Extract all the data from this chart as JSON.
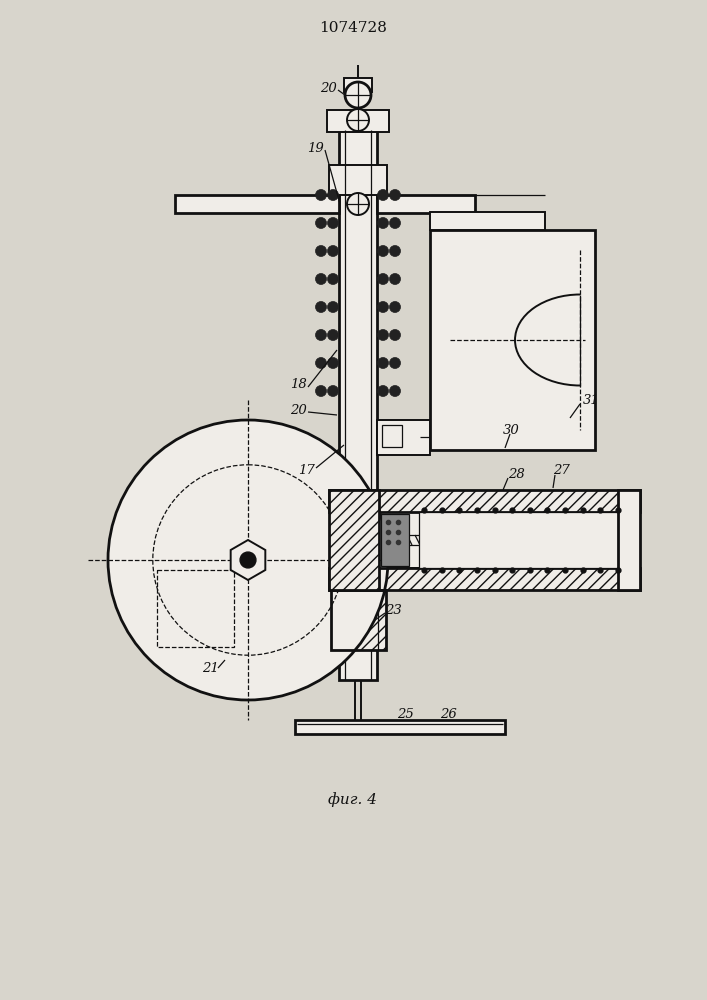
{
  "title": "1074728",
  "caption": "фиг. 4",
  "bg_color": "#d8d5cc",
  "line_color": "#111111",
  "white": "#f0ede8"
}
